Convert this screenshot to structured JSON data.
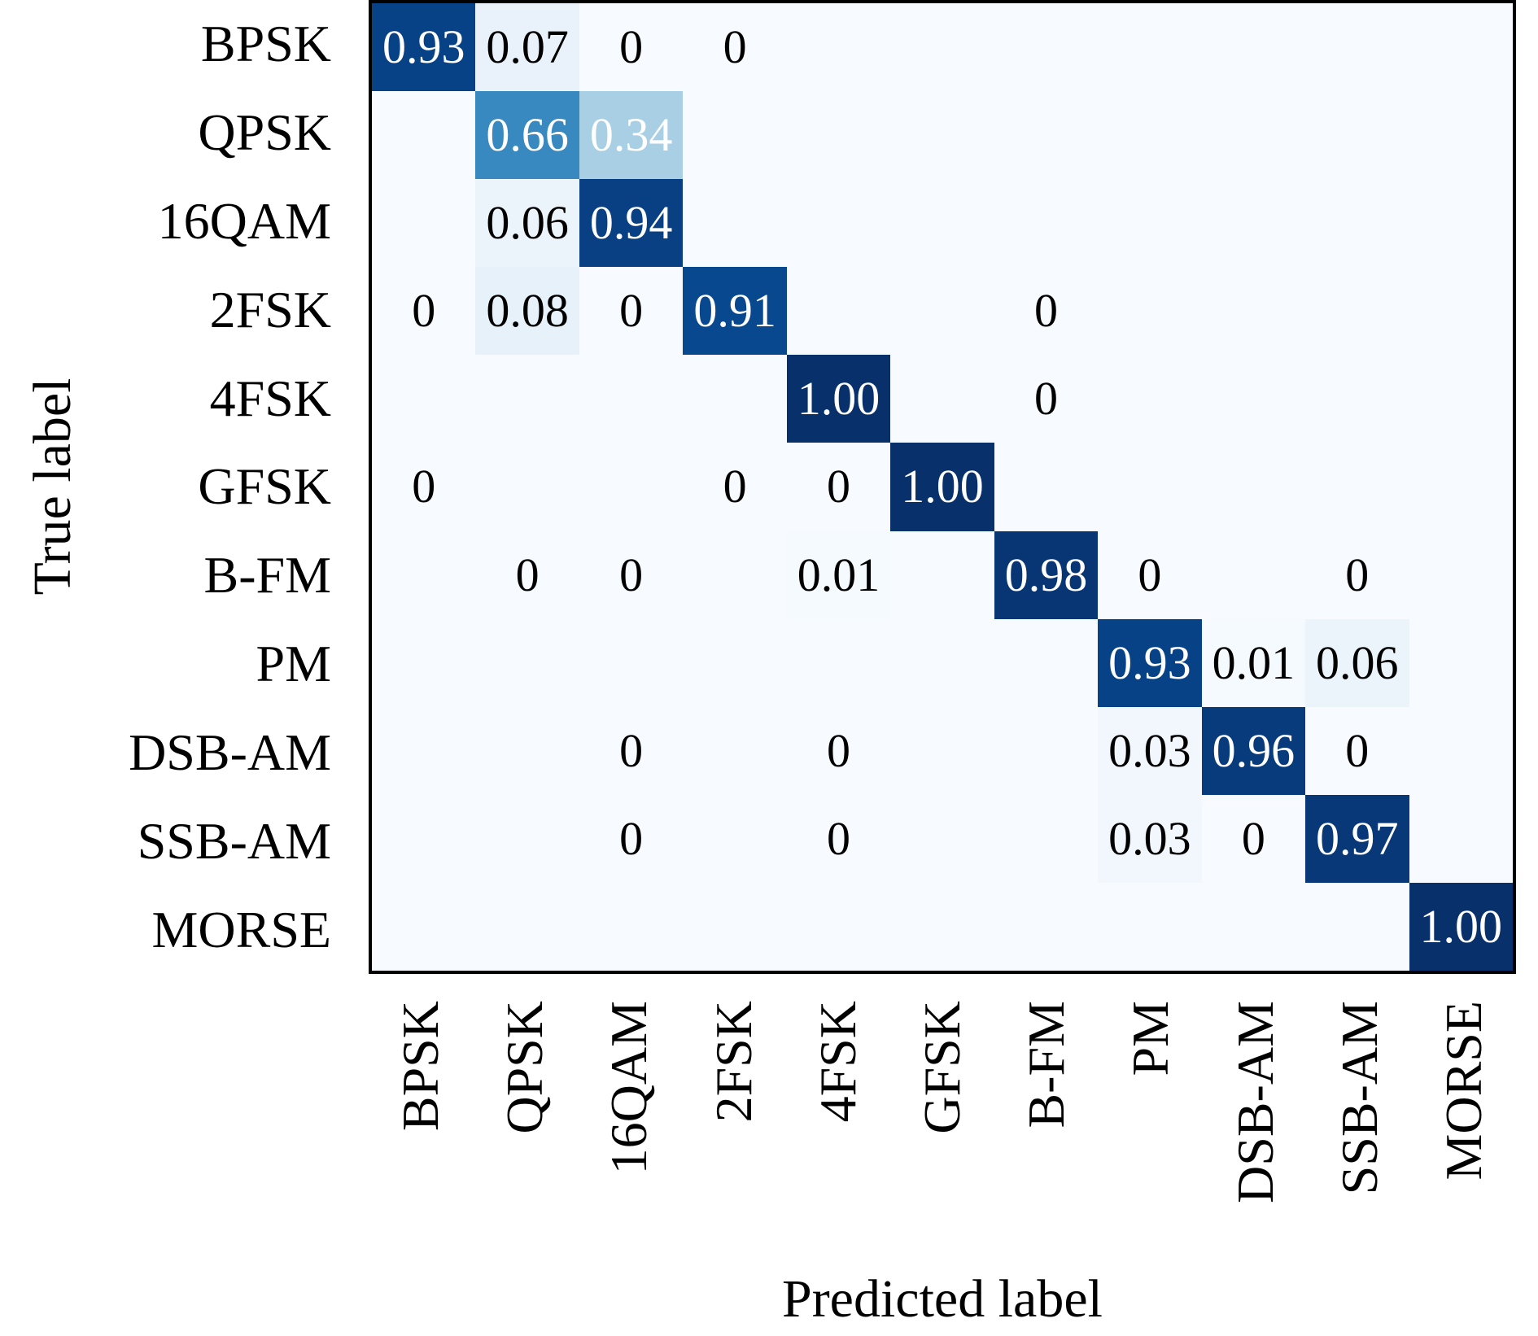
{
  "figure": {
    "background": "#ffffff",
    "axes_border_color": "#000000"
  },
  "chart_data": {
    "type": "heatmap",
    "title": "",
    "xlabel": "Predicted label",
    "ylabel": "True label",
    "x_categories": [
      "BPSK",
      "QPSK",
      "16QAM",
      "2FSK",
      "4FSK",
      "GFSK",
      "B-FM",
      "PM",
      "DSB-AM",
      "SSB-AM",
      "MORSE"
    ],
    "y_categories": [
      "BPSK",
      "QPSK",
      "16QAM",
      "2FSK",
      "4FSK",
      "GFSK",
      "B-FM",
      "PM",
      "DSB-AM",
      "SSB-AM",
      "MORSE"
    ],
    "values": [
      [
        0.93,
        0.07,
        0,
        0,
        0,
        0,
        0,
        0,
        0,
        0,
        0
      ],
      [
        0,
        0.66,
        0.34,
        0,
        0,
        0,
        0,
        0,
        0,
        0,
        0
      ],
      [
        0,
        0.06,
        0.94,
        0,
        0,
        0,
        0,
        0,
        0,
        0,
        0
      ],
      [
        0,
        0.08,
        0,
        0.91,
        0,
        0,
        0,
        0,
        0,
        0,
        0
      ],
      [
        0,
        0,
        0,
        0,
        1.0,
        0,
        0,
        0,
        0,
        0,
        0
      ],
      [
        0,
        0,
        0,
        0,
        0,
        1.0,
        0,
        0,
        0,
        0,
        0
      ],
      [
        0,
        0,
        0,
        0,
        0.01,
        0,
        0.98,
        0,
        0,
        0,
        0
      ],
      [
        0,
        0,
        0,
        0,
        0,
        0,
        0,
        0.93,
        0.01,
        0.06,
        0
      ],
      [
        0,
        0,
        0,
        0,
        0,
        0,
        0,
        0.03,
        0.96,
        0,
        0
      ],
      [
        0,
        0,
        0,
        0,
        0,
        0,
        0,
        0.03,
        0,
        0.97,
        0
      ],
      [
        0,
        0,
        0,
        0,
        0,
        0,
        0,
        0,
        0,
        0,
        1.0
      ]
    ],
    "cell_text": [
      [
        "0.93",
        "0.07",
        "0",
        "0",
        "",
        "",
        "",
        "",
        "",
        "",
        ""
      ],
      [
        "",
        "0.66",
        "0.34",
        "",
        "",
        "",
        "",
        "",
        "",
        "",
        ""
      ],
      [
        "",
        "0.06",
        "0.94",
        "",
        "",
        "",
        "",
        "",
        "",
        "",
        ""
      ],
      [
        "0",
        "0.08",
        "0",
        "0.91",
        "",
        "",
        "0",
        "",
        "",
        "",
        ""
      ],
      [
        "",
        "",
        "",
        "",
        "1.00",
        "",
        "0",
        "",
        "",
        "",
        ""
      ],
      [
        "0",
        "",
        "",
        "0",
        "0",
        "1.00",
        "",
        "",
        "",
        "",
        ""
      ],
      [
        "",
        "0",
        "0",
        "",
        "0.01",
        "",
        "0.98",
        "0",
        "",
        "0",
        ""
      ],
      [
        "",
        "",
        "",
        "",
        "",
        "",
        "",
        "0.93",
        "0.01",
        "0.06",
        ""
      ],
      [
        "",
        "",
        "0",
        "",
        "0",
        "",
        "",
        "0.03",
        "0.96",
        "0",
        ""
      ],
      [
        "",
        "",
        "0",
        "",
        "0",
        "",
        "",
        "0.03",
        "0",
        "0.97",
        ""
      ],
      [
        "",
        "",
        "",
        "",
        "",
        "",
        "",
        "",
        "",
        "",
        "1.00"
      ]
    ],
    "value_range": [
      0,
      1
    ],
    "grid": false,
    "legend": "none",
    "colormap": "Blues",
    "colormap_stops": [
      [
        0.0,
        "#f7fbff"
      ],
      [
        0.125,
        "#deebf7"
      ],
      [
        0.25,
        "#c6dbef"
      ],
      [
        0.375,
        "#9ecae1"
      ],
      [
        0.5,
        "#6baed6"
      ],
      [
        0.625,
        "#4292c6"
      ],
      [
        0.75,
        "#2171b5"
      ],
      [
        0.875,
        "#08519c"
      ],
      [
        1.0,
        "#08306b"
      ]
    ],
    "text_white_threshold": 0.3,
    "text_colors": {
      "on_dark": "#ffffff",
      "on_light": "#000000"
    }
  }
}
